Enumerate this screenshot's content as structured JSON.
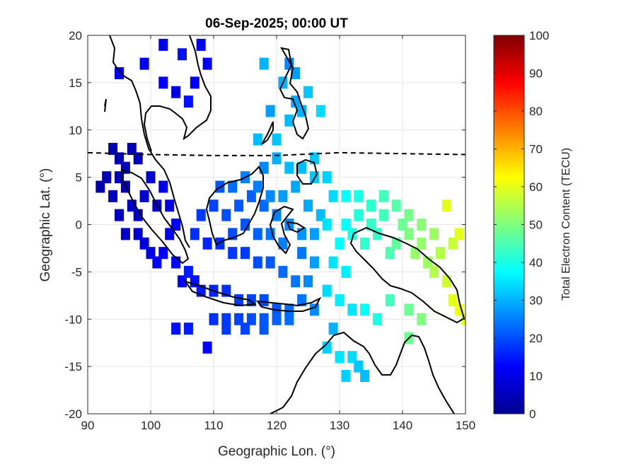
{
  "chart_data": {
    "type": "heatmap",
    "title": "06-Sep-2025; 00:00 UT",
    "xlabel": "Geographic Lon. (°)",
    "ylabel": "Geographic Lat. (°)",
    "xlim": [
      90,
      150
    ],
    "ylim": [
      -20,
      20
    ],
    "xticks": [
      90,
      100,
      110,
      120,
      130,
      140,
      150
    ],
    "yticks": [
      -20,
      -15,
      -10,
      -5,
      0,
      5,
      10,
      15,
      20
    ],
    "grid": true,
    "colorbar": {
      "label": "Total Electron Content (TECU)",
      "range": [
        0,
        100
      ],
      "ticks": [
        0,
        10,
        20,
        30,
        40,
        50,
        60,
        70,
        80,
        90,
        100
      ],
      "colormap": "jet"
    },
    "magnetic_equator_lat": [
      [
        90,
        7.6
      ],
      [
        100,
        7.4
      ],
      [
        110,
        7.3
      ],
      [
        120,
        7.3
      ],
      [
        130,
        7.6
      ],
      [
        140,
        7.5
      ],
      [
        150,
        7.4
      ]
    ],
    "tec_cells": [
      [
        95,
        16,
        12
      ],
      [
        99,
        17,
        10
      ],
      [
        102,
        19,
        10
      ],
      [
        105,
        18,
        14
      ],
      [
        108,
        19,
        11
      ],
      [
        102,
        15,
        12
      ],
      [
        104,
        14,
        10
      ],
      [
        106,
        13,
        14
      ],
      [
        107,
        15,
        12
      ],
      [
        109,
        17,
        12
      ],
      [
        94,
        8,
        5
      ],
      [
        95,
        7,
        5
      ],
      [
        97,
        8,
        5
      ],
      [
        96,
        6,
        6
      ],
      [
        98,
        7,
        6
      ],
      [
        93,
        5,
        5
      ],
      [
        95,
        5,
        5
      ],
      [
        92,
        4,
        5
      ],
      [
        94,
        3,
        6
      ],
      [
        96,
        4,
        6
      ],
      [
        95,
        1,
        6
      ],
      [
        97,
        2,
        7
      ],
      [
        98,
        1,
        7
      ],
      [
        96,
        -1,
        7
      ],
      [
        98,
        -1,
        8
      ],
      [
        99,
        3,
        8
      ],
      [
        100,
        5,
        8
      ],
      [
        101,
        2,
        8
      ],
      [
        99,
        -2,
        9
      ],
      [
        100,
        -3,
        10
      ],
      [
        101,
        -4,
        11
      ],
      [
        102,
        -3,
        11
      ],
      [
        103,
        -1,
        11
      ],
      [
        104,
        0,
        12
      ],
      [
        103,
        2,
        10
      ],
      [
        102,
        4,
        10
      ],
      [
        104,
        -4,
        13
      ],
      [
        105,
        -6,
        13
      ],
      [
        107,
        -6,
        14
      ],
      [
        106,
        -5,
        15
      ],
      [
        108,
        -7,
        15
      ],
      [
        110,
        -7,
        16
      ],
      [
        112,
        -7,
        17
      ],
      [
        114,
        -8,
        18
      ],
      [
        116,
        -8,
        19
      ],
      [
        118,
        -8,
        20
      ],
      [
        120,
        -9,
        21
      ],
      [
        122,
        -9,
        23
      ],
      [
        124,
        -8,
        24
      ],
      [
        126,
        -9,
        26
      ],
      [
        110,
        -10,
        17
      ],
      [
        112,
        -10,
        18
      ],
      [
        114,
        -10,
        19
      ],
      [
        116,
        -10,
        20
      ],
      [
        118,
        -10,
        21
      ],
      [
        120,
        -10,
        22
      ],
      [
        122,
        -10,
        23
      ],
      [
        112,
        -11,
        18
      ],
      [
        115,
        -11,
        19
      ],
      [
        118,
        -11,
        21
      ],
      [
        107,
        -1,
        17
      ],
      [
        109,
        -2,
        16
      ],
      [
        111,
        -2,
        17
      ],
      [
        113,
        -3,
        18
      ],
      [
        115,
        -3,
        18
      ],
      [
        117,
        -4,
        20
      ],
      [
        119,
        -4,
        21
      ],
      [
        121,
        -5,
        23
      ],
      [
        123,
        -6,
        24
      ],
      [
        125,
        -6,
        26
      ],
      [
        108,
        1,
        18
      ],
      [
        110,
        2,
        19
      ],
      [
        112,
        1,
        20
      ],
      [
        114,
        2,
        21
      ],
      [
        116,
        3,
        22
      ],
      [
        118,
        2,
        23
      ],
      [
        120,
        1,
        25
      ],
      [
        122,
        0,
        26
      ],
      [
        124,
        -1,
        27
      ],
      [
        126,
        -1,
        28
      ],
      [
        111,
        4,
        21
      ],
      [
        113,
        4,
        23
      ],
      [
        115,
        5,
        25
      ],
      [
        117,
        4,
        25
      ],
      [
        119,
        3,
        26
      ],
      [
        121,
        3,
        28
      ],
      [
        123,
        4,
        29
      ],
      [
        125,
        2,
        29
      ],
      [
        127,
        1,
        31
      ],
      [
        126,
        5,
        32
      ],
      [
        118,
        6,
        26
      ],
      [
        120,
        7,
        30
      ],
      [
        122,
        6,
        31
      ],
      [
        124,
        6,
        31
      ],
      [
        126,
        7,
        32
      ],
      [
        128,
        5,
        33
      ],
      [
        129,
        3,
        34
      ],
      [
        128,
        0,
        35
      ],
      [
        130,
        -2,
        38
      ],
      [
        131,
        0,
        38
      ],
      [
        132,
        -1,
        40
      ],
      [
        133,
        1,
        41
      ],
      [
        134,
        -2,
        42
      ],
      [
        135,
        0,
        43
      ],
      [
        136,
        -1,
        43
      ],
      [
        137,
        1,
        44
      ],
      [
        138,
        -3,
        45
      ],
      [
        139,
        -2,
        47
      ],
      [
        140,
        0,
        48
      ],
      [
        141,
        -1,
        50
      ],
      [
        142,
        -3,
        52
      ],
      [
        143,
        -2,
        52
      ],
      [
        144,
        -4,
        53
      ],
      [
        145,
        -5,
        55
      ],
      [
        146,
        -3,
        55
      ],
      [
        147,
        -6,
        58
      ],
      [
        148,
        -8,
        60
      ],
      [
        149,
        -9,
        61
      ],
      [
        150,
        -10,
        60
      ],
      [
        148,
        -2,
        57
      ],
      [
        131,
        3,
        38
      ],
      [
        133,
        3,
        40
      ],
      [
        135,
        2,
        42
      ],
      [
        137,
        3,
        44
      ],
      [
        139,
        2,
        46
      ],
      [
        141,
        1,
        49
      ],
      [
        143,
        0,
        51
      ],
      [
        145,
        -1,
        53
      ],
      [
        147,
        2,
        60
      ],
      [
        149,
        -1,
        60
      ],
      [
        121,
        15,
        30
      ],
      [
        123,
        16,
        28
      ],
      [
        125,
        14,
        32
      ],
      [
        127,
        12,
        34
      ],
      [
        124,
        12,
        30
      ],
      [
        122,
        11,
        31
      ],
      [
        119,
        12,
        28
      ],
      [
        118,
        17,
        30
      ],
      [
        122,
        17,
        26
      ],
      [
        123,
        13,
        29
      ],
      [
        117,
        9,
        31
      ],
      [
        120,
        9,
        32
      ],
      [
        129,
        -4,
        35
      ],
      [
        131,
        -5,
        36
      ],
      [
        128,
        -7,
        34
      ],
      [
        130,
        -8,
        36
      ],
      [
        132,
        -9,
        35
      ],
      [
        134,
        -9,
        38
      ],
      [
        136,
        -10,
        40
      ],
      [
        138,
        -8,
        44
      ],
      [
        141,
        -9,
        48
      ],
      [
        143,
        -10,
        50
      ],
      [
        141,
        -12,
        48
      ],
      [
        128,
        -13,
        33
      ],
      [
        130,
        -14,
        35
      ],
      [
        132,
        -14,
        34
      ],
      [
        133,
        -15,
        32
      ],
      [
        134,
        -16,
        31
      ],
      [
        131,
        -16,
        33
      ],
      [
        129,
        -11,
        30
      ],
      [
        104,
        -11,
        14
      ],
      [
        106,
        -11,
        15
      ],
      [
        109,
        -13,
        13
      ],
      [
        124,
        -3,
        24
      ],
      [
        126,
        -4,
        28
      ],
      [
        121,
        -2,
        25
      ],
      [
        119,
        -1,
        24
      ],
      [
        117,
        -1,
        22
      ],
      [
        115,
        0,
        21
      ],
      [
        113,
        -1,
        20
      ]
    ]
  }
}
